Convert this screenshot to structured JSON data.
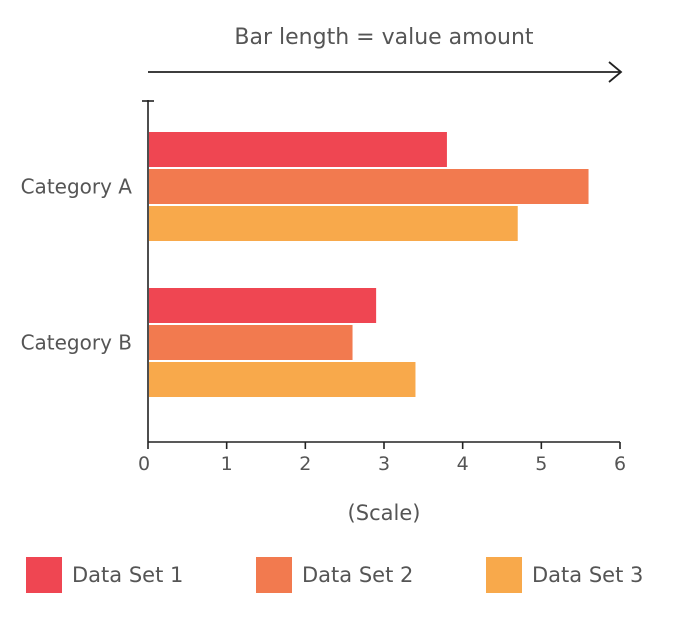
{
  "chart_data": {
    "type": "bar",
    "orientation": "horizontal",
    "title": "Bar length  =  value amount",
    "xlabel": "(Scale)",
    "ylabel": "",
    "xlim": [
      0,
      6
    ],
    "x_ticks": [
      "0",
      "1",
      "2",
      "3",
      "4",
      "5",
      "6"
    ],
    "categories": [
      "Category A",
      "Category B"
    ],
    "series": [
      {
        "name": "Data Set 1",
        "color": "#EF4652",
        "values": [
          3.8,
          2.9
        ]
      },
      {
        "name": "Data Set 2",
        "color": "#F27A4F",
        "values": [
          5.6,
          2.6
        ]
      },
      {
        "name": "Data Set 3",
        "color": "#F8A94B",
        "values": [
          4.7,
          3.4
        ]
      }
    ],
    "grid": false,
    "legend_position": "bottom"
  }
}
